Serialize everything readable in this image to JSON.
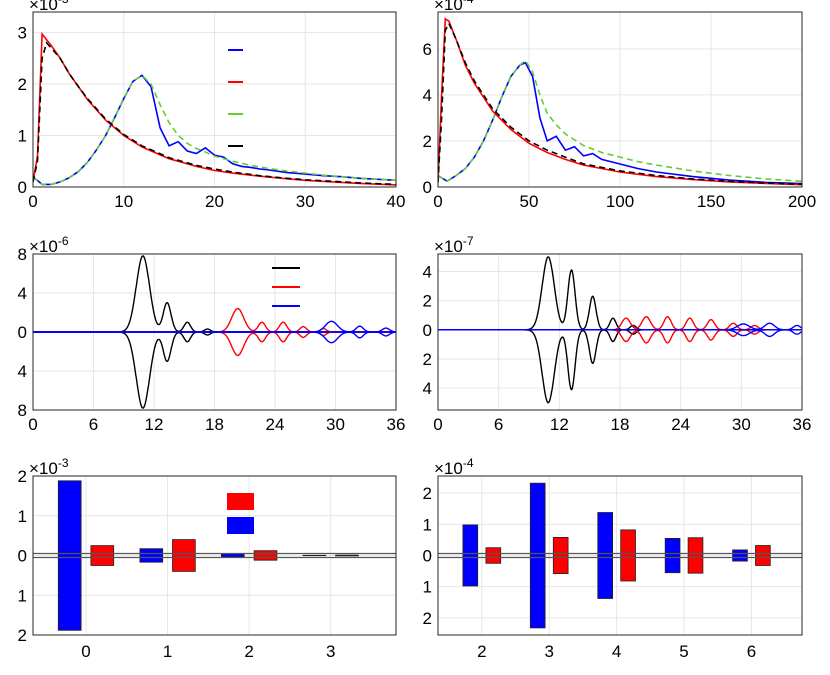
{
  "colors": {
    "blue": "#0000ff",
    "red": "#ff0000",
    "green": "#66cc33",
    "black": "#000000",
    "grid": "#e6e6e6"
  },
  "chart_data": [
    {
      "id": "p1",
      "type": "line",
      "exponent": "-3",
      "xlim": [
        0,
        40
      ],
      "ylim": [
        0,
        3.4
      ],
      "xticks": [
        "0",
        "10",
        "20",
        "30",
        "40"
      ],
      "yticks": [
        "0",
        "1",
        "2",
        "3"
      ],
      "legend": [
        {
          "series": "blue",
          "label": ""
        },
        {
          "series": "red",
          "label": ""
        },
        {
          "series": "green",
          "label": ""
        },
        {
          "series": "black",
          "label": ""
        }
      ],
      "series": [
        {
          "name": "blue",
          "color": "blue",
          "dash": "",
          "x": [
            0,
            1,
            2,
            3,
            4,
            5,
            6,
            7,
            8,
            9,
            10,
            11,
            12,
            13,
            14,
            15,
            16,
            17,
            18,
            19,
            20,
            21,
            22,
            23,
            24,
            25,
            26,
            28,
            30,
            32,
            34,
            36,
            38,
            40
          ],
          "y": [
            0.2,
            0.05,
            0.05,
            0.1,
            0.18,
            0.3,
            0.48,
            0.72,
            1.0,
            1.35,
            1.72,
            2.05,
            2.17,
            1.95,
            1.15,
            0.8,
            0.88,
            0.7,
            0.65,
            0.76,
            0.62,
            0.58,
            0.45,
            0.4,
            0.38,
            0.35,
            0.33,
            0.28,
            0.25,
            0.22,
            0.2,
            0.17,
            0.15,
            0.13
          ]
        },
        {
          "name": "green",
          "color": "green",
          "dash": "6,4",
          "x": [
            0,
            1,
            2,
            3,
            4,
            5,
            6,
            7,
            8,
            9,
            10,
            11,
            12,
            13,
            14,
            15,
            16,
            17,
            18,
            19,
            20,
            22,
            24,
            26,
            28,
            30,
            32,
            34,
            36,
            38,
            40
          ],
          "y": [
            0.2,
            0.05,
            0.05,
            0.1,
            0.18,
            0.3,
            0.48,
            0.72,
            1.0,
            1.35,
            1.72,
            2.05,
            2.17,
            2.0,
            1.6,
            1.25,
            1.0,
            0.85,
            0.75,
            0.68,
            0.6,
            0.5,
            0.42,
            0.36,
            0.31,
            0.27,
            0.23,
            0.2,
            0.17,
            0.15,
            0.13
          ]
        },
        {
          "name": "red",
          "color": "red",
          "dash": "",
          "x": [
            0,
            0.5,
            1,
            2,
            3,
            4,
            5,
            6,
            8,
            10,
            12,
            15,
            18,
            20,
            22,
            25,
            28,
            30,
            33,
            36,
            40
          ],
          "y": [
            0.1,
            0.6,
            2.97,
            2.75,
            2.5,
            2.2,
            1.95,
            1.7,
            1.3,
            1.0,
            0.78,
            0.55,
            0.4,
            0.32,
            0.27,
            0.21,
            0.16,
            0.13,
            0.1,
            0.07,
            0.04
          ]
        },
        {
          "name": "black",
          "color": "black",
          "dash": "6,4",
          "x": [
            0,
            0.5,
            1,
            1.5,
            2,
            3,
            4,
            5,
            6,
            8,
            10,
            12,
            15,
            18,
            20,
            22,
            25,
            28,
            30,
            33,
            36,
            40
          ],
          "y": [
            0.1,
            0.5,
            2.5,
            2.8,
            2.7,
            2.5,
            2.2,
            1.95,
            1.72,
            1.32,
            1.02,
            0.8,
            0.57,
            0.42,
            0.35,
            0.29,
            0.22,
            0.17,
            0.14,
            0.11,
            0.08,
            0.05
          ]
        }
      ]
    },
    {
      "id": "p2",
      "type": "line",
      "exponent": "-4",
      "xlim": [
        0,
        200
      ],
      "ylim": [
        0,
        7.6
      ],
      "xticks": [
        "0",
        "50",
        "100",
        "150",
        "200"
      ],
      "yticks": [
        "0",
        "2",
        "4",
        "6"
      ],
      "series": [
        {
          "name": "blue",
          "color": "blue",
          "dash": "",
          "x": [
            0,
            5,
            10,
            15,
            20,
            25,
            30,
            35,
            40,
            45,
            48,
            52,
            56,
            60,
            65,
            70,
            75,
            80,
            85,
            90,
            100,
            110,
            120,
            140,
            160,
            180,
            200
          ],
          "y": [
            0.5,
            0.25,
            0.5,
            0.8,
            1.3,
            2.0,
            2.9,
            3.9,
            4.8,
            5.3,
            5.4,
            4.8,
            3.0,
            2.0,
            2.2,
            1.6,
            1.75,
            1.35,
            1.45,
            1.2,
            1.0,
            0.8,
            0.65,
            0.45,
            0.3,
            0.2,
            0.15
          ]
        },
        {
          "name": "green",
          "color": "green",
          "dash": "6,4",
          "x": [
            0,
            5,
            10,
            15,
            20,
            25,
            30,
            35,
            40,
            45,
            48,
            52,
            56,
            60,
            65,
            70,
            80,
            90,
            100,
            110,
            120,
            140,
            160,
            180,
            200
          ],
          "y": [
            0.5,
            0.25,
            0.5,
            0.8,
            1.3,
            2.0,
            2.9,
            3.9,
            4.8,
            5.3,
            5.5,
            5.0,
            4.0,
            3.2,
            2.7,
            2.3,
            1.8,
            1.5,
            1.3,
            1.1,
            0.95,
            0.7,
            0.5,
            0.35,
            0.25
          ]
        },
        {
          "name": "red",
          "color": "red",
          "dash": "",
          "x": [
            0,
            2,
            4,
            6,
            10,
            15,
            20,
            30,
            40,
            50,
            60,
            70,
            80,
            100,
            120,
            140,
            160,
            180,
            200
          ],
          "y": [
            0.2,
            4.0,
            7.3,
            7.2,
            6.4,
            5.3,
            4.5,
            3.3,
            2.5,
            1.9,
            1.5,
            1.2,
            0.95,
            0.65,
            0.45,
            0.32,
            0.22,
            0.15,
            0.1
          ]
        },
        {
          "name": "black",
          "color": "black",
          "dash": "6,4",
          "x": [
            0,
            2,
            4,
            6,
            10,
            15,
            20,
            30,
            40,
            50,
            60,
            70,
            80,
            100,
            120,
            140,
            160,
            180,
            200
          ],
          "y": [
            0.2,
            3.0,
            6.8,
            7.1,
            6.4,
            5.4,
            4.6,
            3.4,
            2.6,
            2.0,
            1.6,
            1.3,
            1.0,
            0.7,
            0.5,
            0.35,
            0.25,
            0.17,
            0.12
          ]
        }
      ]
    },
    {
      "id": "p3",
      "type": "line",
      "exponent": "-6",
      "xlim": [
        0,
        36
      ],
      "ylim": [
        -8,
        8
      ],
      "xticks": [
        "0",
        "6",
        "12",
        "18",
        "24",
        "30",
        "36"
      ],
      "yticks": [
        "8",
        "4",
        "0",
        "4",
        "8"
      ],
      "legend": [
        {
          "series": "black",
          "label": ""
        },
        {
          "series": "red",
          "label": ""
        },
        {
          "series": "blue",
          "label": ""
        }
      ],
      "series": [
        {
          "name": "black",
          "color": "black",
          "mirrored": true,
          "packets": [
            {
              "center": 10.9,
              "width": 1.1,
              "amp": 7.8
            },
            {
              "center": 13.3,
              "width": 0.65,
              "amp": 3.0
            },
            {
              "center": 15.3,
              "width": 0.55,
              "amp": 1.0
            },
            {
              "center": 17.3,
              "width": 0.5,
              "amp": 0.3
            }
          ]
        },
        {
          "name": "red",
          "color": "red",
          "mirrored": true,
          "packets": [
            {
              "center": 20.3,
              "width": 1.0,
              "amp": 2.4
            },
            {
              "center": 22.7,
              "width": 0.6,
              "amp": 1.0
            },
            {
              "center": 24.8,
              "width": 0.6,
              "amp": 1.0
            },
            {
              "center": 26.8,
              "width": 0.55,
              "amp": 0.55
            },
            {
              "center": 28.8,
              "width": 0.5,
              "amp": 0.35
            }
          ]
        },
        {
          "name": "blue",
          "color": "blue",
          "mirrored": true,
          "packets": [
            {
              "center": 29.6,
              "width": 1.0,
              "amp": 1.1
            },
            {
              "center": 32.4,
              "width": 0.6,
              "amp": 0.6
            },
            {
              "center": 35.0,
              "width": 0.6,
              "amp": 0.4
            }
          ]
        }
      ]
    },
    {
      "id": "p4",
      "type": "line",
      "exponent": "-7",
      "xlim": [
        0,
        36
      ],
      "ylim": [
        -5.5,
        5.2
      ],
      "xticks": [
        "0",
        "6",
        "12",
        "18",
        "24",
        "30",
        "36"
      ],
      "yticks": [
        "4",
        "2",
        "0",
        "2",
        "4"
      ],
      "series": [
        {
          "name": "black",
          "color": "black",
          "mirrored": true,
          "packets": [
            {
              "center": 10.9,
              "width": 1.0,
              "amp": 5.0
            },
            {
              "center": 13.2,
              "width": 0.6,
              "amp": 4.1
            },
            {
              "center": 15.3,
              "width": 0.55,
              "amp": 2.3
            },
            {
              "center": 17.3,
              "width": 0.5,
              "amp": 0.8
            },
            {
              "center": 19.3,
              "width": 0.5,
              "amp": 0.3
            }
          ]
        },
        {
          "name": "red",
          "color": "red",
          "mirrored": true,
          "packets": [
            {
              "center": 18.6,
              "width": 0.7,
              "amp": 0.8
            },
            {
              "center": 20.6,
              "width": 0.7,
              "amp": 0.9
            },
            {
              "center": 22.7,
              "width": 0.6,
              "amp": 0.9
            },
            {
              "center": 24.9,
              "width": 0.6,
              "amp": 0.8
            },
            {
              "center": 27.0,
              "width": 0.6,
              "amp": 0.7
            },
            {
              "center": 29.2,
              "width": 0.6,
              "amp": 0.45
            },
            {
              "center": 31.3,
              "width": 0.6,
              "amp": 0.3
            }
          ]
        },
        {
          "name": "blue",
          "color": "blue",
          "mirrored": true,
          "packets": [
            {
              "center": 30.2,
              "width": 1.0,
              "amp": 0.4
            },
            {
              "center": 32.8,
              "width": 0.8,
              "amp": 0.45
            },
            {
              "center": 35.5,
              "width": 0.6,
              "amp": 0.3
            }
          ]
        }
      ]
    },
    {
      "id": "p5",
      "type": "bar",
      "exponent": "-3",
      "categories": [
        "0",
        "1",
        "2",
        "3"
      ],
      "ylim": [
        -2,
        2
      ],
      "yticks": [
        "2",
        "1",
        "0",
        "1",
        "2"
      ],
      "xlim": [
        -0.65,
        3.8
      ],
      "legend": [
        {
          "series": "red",
          "label": ""
        },
        {
          "series": "blue",
          "label": ""
        }
      ],
      "series": [
        {
          "name": "blue",
          "color": "blue",
          "offset": -0.2,
          "values": [
            1.88,
            0.17,
            0.04,
            0.005
          ]
        },
        {
          "name": "red",
          "color": "red",
          "offset": 0.2,
          "values": [
            0.25,
            0.4,
            0.12,
            0.01
          ]
        }
      ]
    },
    {
      "id": "p6",
      "type": "bar",
      "exponent": "-4",
      "categories": [
        "2",
        "3",
        "4",
        "5",
        "6"
      ],
      "xvalues": [
        2,
        3,
        4,
        5,
        6
      ],
      "ylim": [
        -2.55,
        2.55
      ],
      "yticks": [
        "2",
        "1",
        "0",
        "1",
        "2"
      ],
      "xlim": [
        1.35,
        6.75
      ],
      "series": [
        {
          "name": "blue",
          "color": "blue",
          "offset": -0.17,
          "values": [
            0.98,
            2.32,
            1.38,
            0.55,
            0.18
          ]
        },
        {
          "name": "red",
          "color": "red",
          "offset": 0.17,
          "values": [
            0.25,
            0.58,
            0.82,
            0.57,
            0.32
          ]
        }
      ]
    }
  ]
}
